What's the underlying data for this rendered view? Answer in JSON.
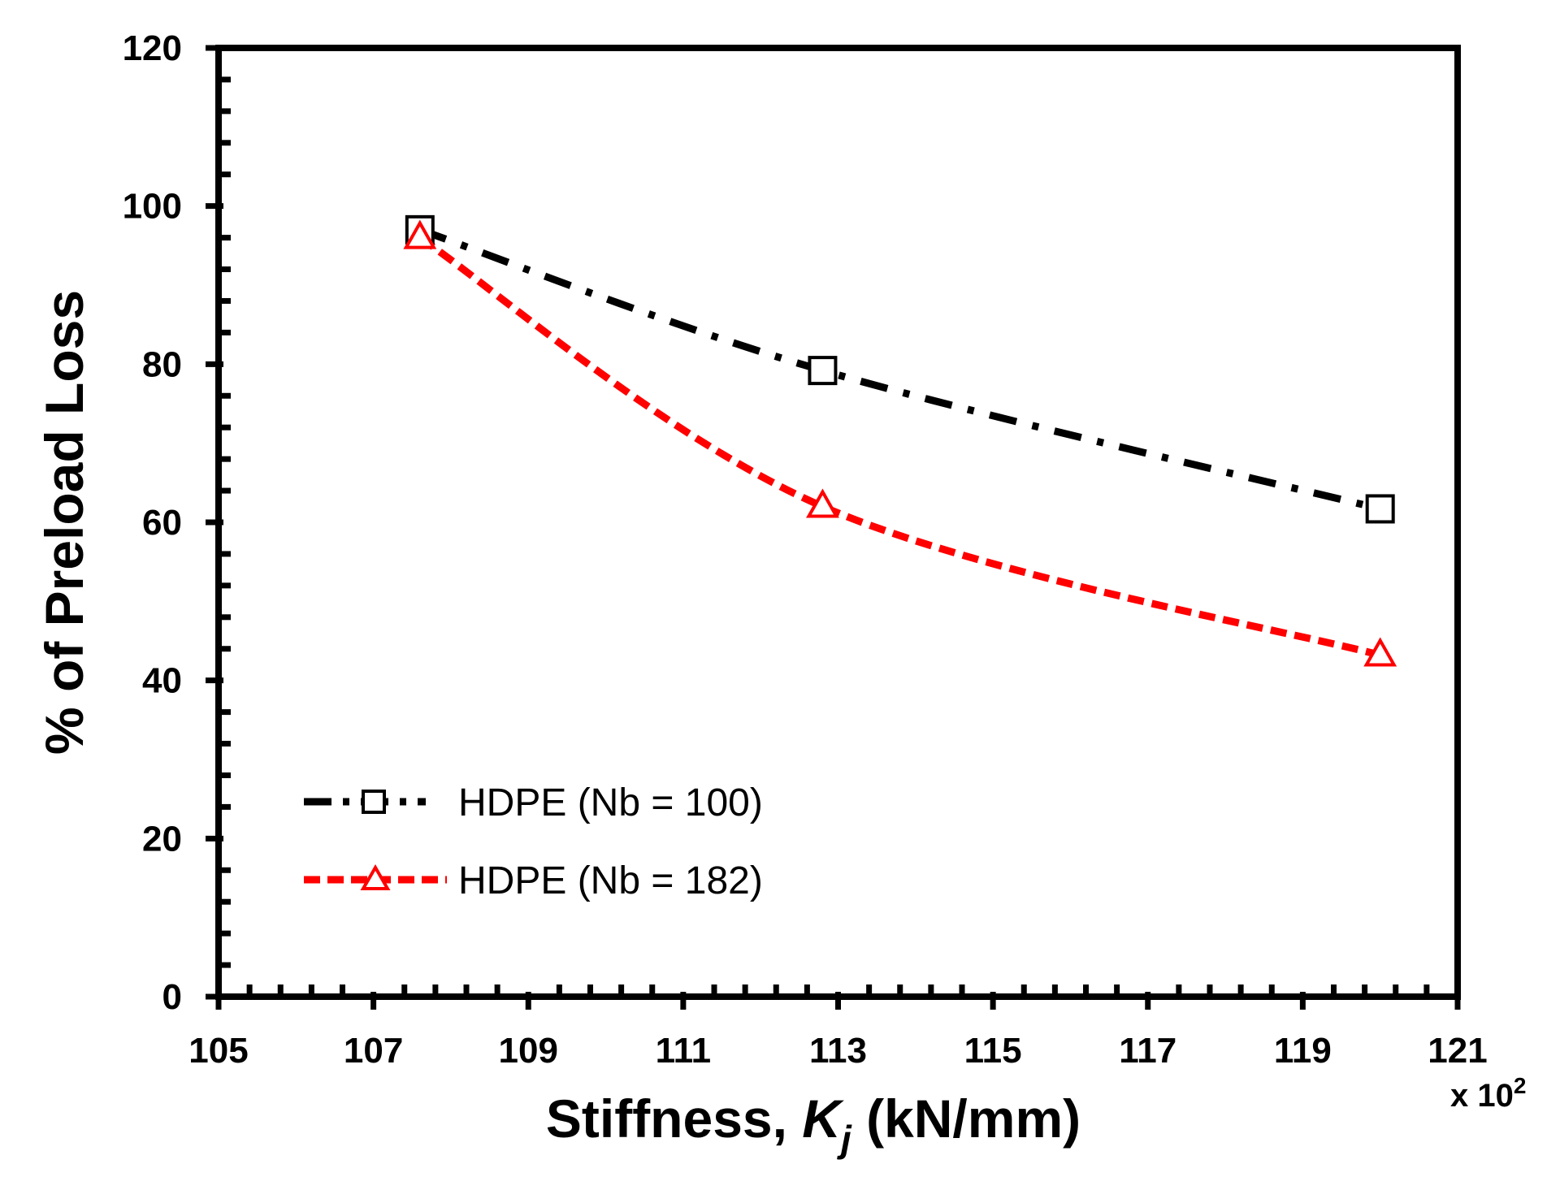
{
  "chart_data": {
    "type": "line",
    "title": "",
    "xlabel_prefix": "Stiffness, ",
    "xlabel_symbol": "K",
    "xlabel_subscript": "j",
    "xlabel_suffix": " (kN/mm)",
    "ylabel": "% of Preload Loss",
    "x_multiplier_base": "x 10",
    "x_multiplier_exp": "2",
    "xlim": [
      105,
      121
    ],
    "ylim": [
      0,
      120
    ],
    "xticks": [
      "105",
      "107",
      "109",
      "111",
      "113",
      "115",
      "117",
      "119",
      "121"
    ],
    "yticks": [
      "0",
      "20",
      "40",
      "60",
      "80",
      "100",
      "120"
    ],
    "grid": false,
    "legend_position": "lower-left",
    "series": [
      {
        "name": "HDPE (Nb = 100)",
        "color": "#000000",
        "marker": "square",
        "line_style": "dash-dot",
        "x": [
          107.6,
          112.8,
          120.0
        ],
        "y": [
          97.0,
          79.2,
          61.7
        ]
      },
      {
        "name": "HDPE (Nb = 182)",
        "color": "#ff0000",
        "marker": "triangle",
        "line_style": "dash",
        "x": [
          107.6,
          112.8,
          120.0
        ],
        "y": [
          96.0,
          62.0,
          43.2
        ]
      }
    ]
  }
}
